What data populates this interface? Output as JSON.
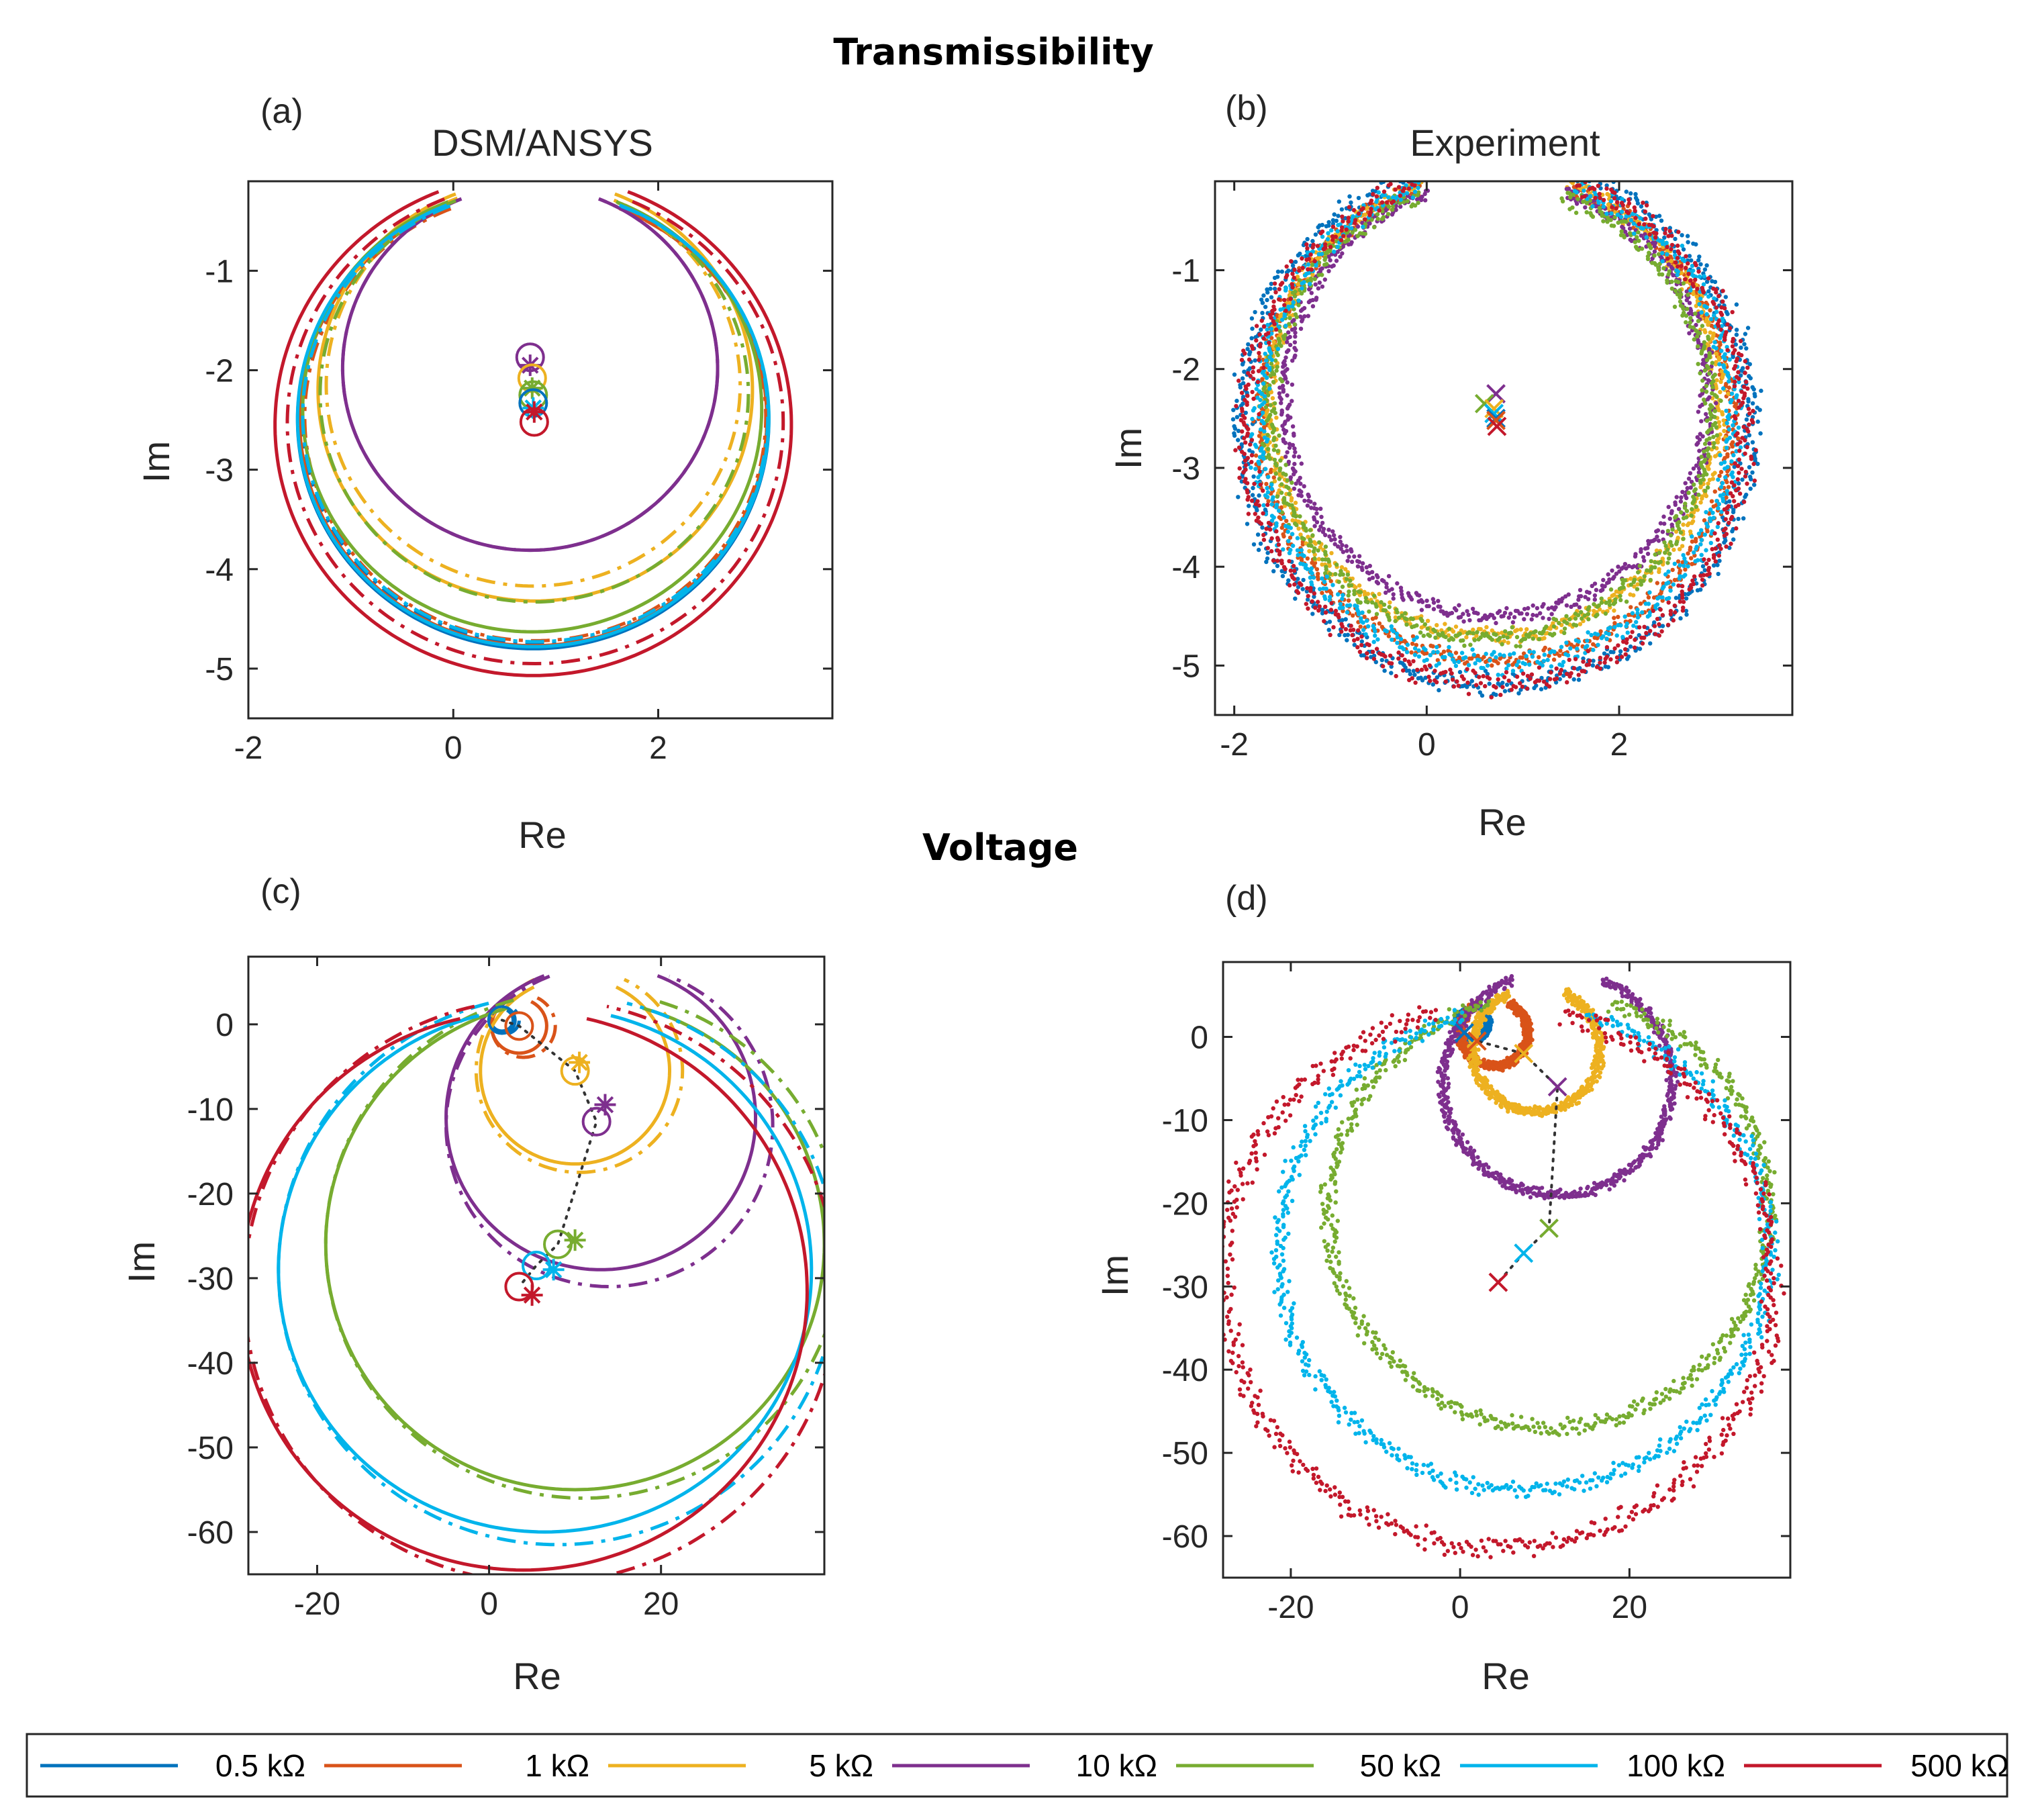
{
  "figure": {
    "sections": {
      "transmissibility": "Transmissibility",
      "voltage": "Voltage"
    }
  },
  "legend": {
    "entries": [
      {
        "label": "0.5 kΩ",
        "color": "#0072BD"
      },
      {
        "label": "1 kΩ",
        "color": "#D95319"
      },
      {
        "label": "5 kΩ",
        "color": "#EDB120"
      },
      {
        "label": "10 kΩ",
        "color": "#7E2F8E"
      },
      {
        "label": "50 kΩ",
        "color": "#77AC30"
      },
      {
        "label": "100 kΩ",
        "color": "#00B4EB"
      },
      {
        "label": "500 kΩ",
        "color": "#C3182B"
      }
    ]
  },
  "chart_data": [
    {
      "id": "a",
      "panel_label": "(a)",
      "title": "DSM/ANSYS",
      "type": "line",
      "xlabel": "Re",
      "ylabel": "Im",
      "xlim": [
        -2,
        3.7
      ],
      "ylim": [
        -5.5,
        -0.1
      ],
      "xticks": [
        -2,
        0,
        2
      ],
      "yticks": [
        -1,
        -2,
        -3,
        -4,
        -5
      ],
      "style": "dsm",
      "series": [
        {
          "name": "0.5 kΩ",
          "color": "#0072BD",
          "cx": 0.78,
          "cy": -2.5,
          "r": 2.3,
          "gap": 0.75,
          "dcx": 0.02,
          "dcy": 0.02,
          "dr": -0.03
        },
        {
          "name": "1 kΩ",
          "color": "#D95319",
          "cx": 0.78,
          "cy": -2.49,
          "r": 2.28,
          "gap": 0.75,
          "dcx": 0.02,
          "dcy": 0.02,
          "dr": -0.03
        },
        {
          "name": "5 kΩ",
          "color": "#EDB120",
          "cx": 0.8,
          "cy": -2.2,
          "r": 2.12,
          "gap": 0.75,
          "dcx": -0.02,
          "dcy": 0.05,
          "dr": -0.1
        },
        {
          "name": "10 kΩ",
          "color": "#7E2F8E",
          "cx": 0.75,
          "cy": -1.98,
          "r": 1.83,
          "gap": 0.75,
          "dcx": 0,
          "dcy": 0,
          "dr": 0
        },
        {
          "name": "50 kΩ",
          "color": "#77AC30",
          "cx": 0.77,
          "cy": -2.39,
          "r": 2.24,
          "gap": 0.75,
          "dcx": 0.02,
          "dcy": 0.15,
          "dr": -0.15
        },
        {
          "name": "100 kΩ",
          "color": "#00B4EB",
          "cx": 0.78,
          "cy": -2.48,
          "r": 2.3,
          "gap": 0.75,
          "dcx": 0.02,
          "dcy": 0.02,
          "dr": -0.03
        },
        {
          "name": "500 kΩ",
          "color": "#C3182B",
          "cx": 0.78,
          "cy": -2.55,
          "r": 2.52,
          "gap": 0.75,
          "dcx": 0.02,
          "dcy": 0.02,
          "dr": -0.1
        }
      ],
      "markers": [
        {
          "color": "#7E2F8E",
          "x": 0.75,
          "y": -1.87,
          "type": "circle"
        },
        {
          "color": "#7E2F8E",
          "x": 0.75,
          "y": -1.95,
          "type": "star"
        },
        {
          "color": "#EDB120",
          "x": 0.77,
          "y": -2.08,
          "type": "circle"
        },
        {
          "color": "#77AC30",
          "x": 0.77,
          "y": -2.18,
          "type": "star"
        },
        {
          "color": "#77AC30",
          "x": 0.78,
          "y": -2.25,
          "type": "circle"
        },
        {
          "color": "#0072BD",
          "x": 0.78,
          "y": -2.33,
          "type": "circle"
        },
        {
          "color": "#00B4EB",
          "x": 0.78,
          "y": -2.38,
          "type": "star"
        },
        {
          "color": "#C3182B",
          "x": 0.79,
          "y": -2.42,
          "type": "star"
        },
        {
          "color": "#C3182B",
          "x": 0.79,
          "y": -2.52,
          "type": "circle"
        }
      ]
    },
    {
      "id": "b",
      "panel_label": "(b)",
      "title": "Experiment",
      "type": "scatter",
      "xlabel": "Re",
      "ylabel": "Im",
      "xlim": [
        -2.2,
        3.8
      ],
      "ylim": [
        -5.5,
        -0.1
      ],
      "xticks": [
        -2,
        0,
        2
      ],
      "yticks": [
        -1,
        -2,
        -3,
        -4,
        -5
      ],
      "style": "exp",
      "series": [
        {
          "name": "0.5 kΩ",
          "color": "#0072BD",
          "cx": 0.72,
          "cy": -2.55,
          "r": 2.65,
          "gap": 0.65,
          "noise": 0.1
        },
        {
          "name": "1 kΩ",
          "color": "#D95319",
          "cx": 0.72,
          "cy": -2.5,
          "r": 2.45,
          "gap": 0.65,
          "noise": 0.07
        },
        {
          "name": "5 kΩ",
          "color": "#EDB120",
          "cx": 0.7,
          "cy": -2.35,
          "r": 2.35,
          "gap": 0.65,
          "noise": 0.07
        },
        {
          "name": "10 kΩ",
          "color": "#7E2F8E",
          "cx": 0.72,
          "cy": -2.3,
          "r": 2.2,
          "gap": 0.65,
          "noise": 0.07
        },
        {
          "name": "50 kΩ",
          "color": "#77AC30",
          "cx": 0.66,
          "cy": -2.42,
          "r": 2.3,
          "gap": 0.65,
          "noise": 0.08
        },
        {
          "name": "100 kΩ",
          "color": "#00B4EB",
          "cx": 0.72,
          "cy": -2.5,
          "r": 2.48,
          "gap": 0.65,
          "noise": 0.09
        },
        {
          "name": "500 kΩ",
          "color": "#C3182B",
          "cx": 0.72,
          "cy": -2.58,
          "r": 2.6,
          "gap": 0.65,
          "noise": 0.1
        }
      ],
      "markers": [
        {
          "color": "#7E2F8E",
          "x": 0.72,
          "y": -2.25,
          "type": "x"
        },
        {
          "color": "#77AC30",
          "x": 0.6,
          "y": -2.35,
          "type": "x"
        },
        {
          "color": "#EDB120",
          "x": 0.7,
          "y": -2.4,
          "type": "x"
        },
        {
          "color": "#00B4EB",
          "x": 0.7,
          "y": -2.45,
          "type": "x"
        },
        {
          "color": "#0072BD",
          "x": 0.72,
          "y": -2.5,
          "type": "x"
        },
        {
          "color": "#D95319",
          "x": 0.72,
          "y": -2.52,
          "type": "x"
        },
        {
          "color": "#C3182B",
          "x": 0.73,
          "y": -2.58,
          "type": "x"
        }
      ]
    },
    {
      "id": "c",
      "panel_label": "(c)",
      "type": "line",
      "xlabel": "Re",
      "ylabel": "Im",
      "xlim": [
        -28,
        39
      ],
      "ylim": [
        -65,
        8
      ],
      "xticks": [
        -20,
        0,
        20
      ],
      "yticks": [
        0,
        -10,
        -20,
        -30,
        -40,
        -50,
        -60
      ],
      "style": "dsm",
      "series": [
        {
          "name": "0.5 kΩ",
          "color": "#0072BD",
          "cx": 1.5,
          "cy": 0.5,
          "r": 1.3,
          "gap": 0.9,
          "dcx": 0.4,
          "dcy": 0,
          "dr": 0.3
        },
        {
          "name": "1 kΩ",
          "color": "#D95319",
          "cx": 3.5,
          "cy": -0.2,
          "r": 3.2,
          "gap": 0.9,
          "dcx": 0.5,
          "dcy": 0,
          "dr": 0.5
        },
        {
          "name": "5 kΩ",
          "color": "#EDB120",
          "cx": 10,
          "cy": -5.5,
          "r": 11,
          "gap": 0.9,
          "dcx": 0.5,
          "dcy": 0,
          "dr": 1
        },
        {
          "name": "10 kΩ",
          "color": "#7E2F8E",
          "cx": 13,
          "cy": -11,
          "r": 18,
          "gap": 0.75,
          "dcx": 1,
          "dcy": -1,
          "dr": 1
        },
        {
          "name": "50 kΩ",
          "color": "#77AC30",
          "cx": 10,
          "cy": -26,
          "r": 29,
          "gap": 0.55,
          "dcx": 1,
          "dcy": 0,
          "dr": 1
        },
        {
          "name": "100 kΩ",
          "color": "#00B4EB",
          "cx": 6.5,
          "cy": -29,
          "r": 31,
          "gap": 0.5,
          "dcx": 1.5,
          "dcy": 0,
          "dr": 1.5
        },
        {
          "name": "500 kΩ",
          "color": "#C3182B",
          "cx": 4,
          "cy": -31.5,
          "r": 33,
          "gap": 0.45,
          "dcx": 2,
          "dcy": 0,
          "dr": 1.5
        }
      ],
      "markers": [
        {
          "color": "#0072BD",
          "x": 1.5,
          "y": 0.5,
          "type": "circle"
        },
        {
          "color": "#D95319",
          "x": 3.5,
          "y": -0.2,
          "type": "circle"
        },
        {
          "color": "#EDB120",
          "x": 10,
          "y": -5.5,
          "type": "circle"
        },
        {
          "color": "#EDB120",
          "x": 10.5,
          "y": -4.5,
          "type": "star"
        },
        {
          "color": "#7E2F8E",
          "x": 12.5,
          "y": -11.5,
          "type": "circle"
        },
        {
          "color": "#7E2F8E",
          "x": 13.5,
          "y": -9.5,
          "type": "star"
        },
        {
          "color": "#77AC30",
          "x": 8,
          "y": -26,
          "type": "circle"
        },
        {
          "color": "#77AC30",
          "x": 10,
          "y": -25.5,
          "type": "star"
        },
        {
          "color": "#00B4EB",
          "x": 5.5,
          "y": -28.5,
          "type": "circle"
        },
        {
          "color": "#00B4EB",
          "x": 7.5,
          "y": -29,
          "type": "star"
        },
        {
          "color": "#C3182B",
          "x": 3.5,
          "y": -31,
          "type": "circle"
        },
        {
          "color": "#C3182B",
          "x": 5,
          "y": -32,
          "type": "star"
        }
      ],
      "dotted_path": [
        [
          1.5,
          0.5
        ],
        [
          3.5,
          -0.2
        ],
        [
          10,
          -5.5
        ],
        [
          12.5,
          -11.5
        ],
        [
          8,
          -26
        ],
        [
          5.5,
          -28.5
        ],
        [
          3.5,
          -31
        ]
      ]
    },
    {
      "id": "d",
      "panel_label": "(d)",
      "type": "scatter",
      "xlabel": "Re",
      "ylabel": "Im",
      "xlim": [
        -28,
        39
      ],
      "ylim": [
        -65,
        9
      ],
      "xticks": [
        -20,
        0,
        20
      ],
      "yticks": [
        0,
        -10,
        -20,
        -30,
        -40,
        -50,
        -60
      ],
      "style": "exp",
      "series": [
        {
          "name": "0.5 kΩ",
          "color": "#0072BD",
          "cx": 1.5,
          "cy": 1.5,
          "r": 1.8,
          "gap": 0.9,
          "noise": 0.35
        },
        {
          "name": "1 kΩ",
          "color": "#D95319",
          "cx": 4,
          "cy": 0.5,
          "r": 4,
          "gap": 0.9,
          "noise": 0.45
        },
        {
          "name": "5 kΩ",
          "color": "#EDB120",
          "cx": 9,
          "cy": -1.5,
          "r": 7.5,
          "gap": 0.9,
          "noise": 0.5
        },
        {
          "name": "10 kΩ",
          "color": "#7E2F8E",
          "cx": 11.5,
          "cy": -5.5,
          "r": 13.5,
          "gap": 0.8,
          "noise": 0.55
        },
        {
          "name": "50 kΩ",
          "color": "#77AC30",
          "cx": 10.5,
          "cy": -21,
          "r": 26,
          "gap": 0.55,
          "noise": 0.8
        },
        {
          "name": "100 kΩ",
          "color": "#00B4EB",
          "cx": 7.5,
          "cy": -25.5,
          "r": 29,
          "gap": 0.5,
          "noise": 0.9
        },
        {
          "name": "500 kΩ",
          "color": "#C3182B",
          "cx": 4.5,
          "cy": -29,
          "r": 32.5,
          "gap": 0.45,
          "noise": 1.1
        }
      ],
      "markers": [
        {
          "color": "#0072BD",
          "x": 0.5,
          "y": 0.5,
          "type": "x"
        },
        {
          "color": "#D95319",
          "x": 2,
          "y": -0.5,
          "type": "x"
        },
        {
          "color": "#EDB120",
          "x": 7.5,
          "y": -2,
          "type": "x"
        },
        {
          "color": "#7E2F8E",
          "x": 11.5,
          "y": -6,
          "type": "x"
        },
        {
          "color": "#77AC30",
          "x": 10.5,
          "y": -23,
          "type": "x"
        },
        {
          "color": "#00B4EB",
          "x": 7.5,
          "y": -26,
          "type": "x"
        },
        {
          "color": "#C3182B",
          "x": 4.5,
          "y": -29.5,
          "type": "x"
        }
      ],
      "dotted_path": [
        [
          0.5,
          0.5
        ],
        [
          2,
          -0.5
        ],
        [
          7.5,
          -2
        ],
        [
          11.5,
          -6
        ],
        [
          10.5,
          -23
        ],
        [
          7.5,
          -26
        ],
        [
          4.5,
          -29.5
        ]
      ]
    }
  ]
}
